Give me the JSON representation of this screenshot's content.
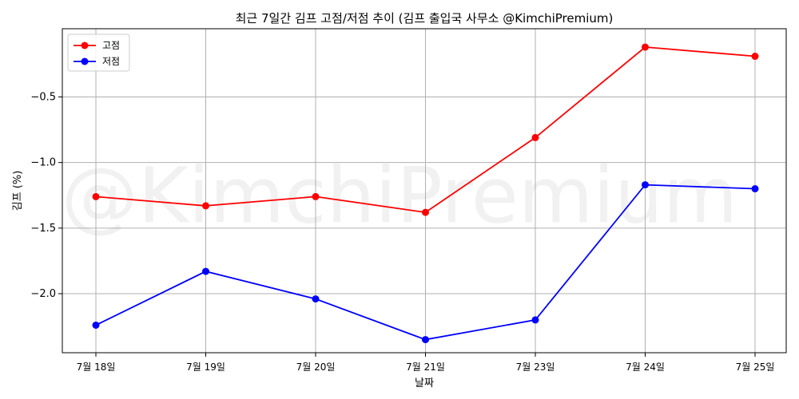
{
  "chart_data": {
    "type": "line",
    "title": "최근 7일간 김프 고점/저점 추이 (김프 출입국 사무소 @KimchiPremium)",
    "xlabel": "날짜",
    "ylabel": "김프 (%)",
    "categories": [
      "7월 18일",
      "7월 19일",
      "7월 20일",
      "7월 21일",
      "7월 23일",
      "7월 24일",
      "7월 25일"
    ],
    "series": [
      {
        "name": "고점",
        "color": "#ff0000",
        "values": [
          -1.26,
          -1.33,
          -1.26,
          -1.38,
          -0.81,
          -0.12,
          -0.19
        ]
      },
      {
        "name": "저점",
        "color": "#0000ff",
        "values": [
          -2.24,
          -1.83,
          -2.04,
          -2.35,
          -2.2,
          -1.17,
          -1.2
        ]
      }
    ],
    "yticks": [
      -0.5,
      -1.0,
      -1.5,
      -2.0
    ],
    "ytick_labels": [
      "−0.5",
      "−1.0",
      "−1.5",
      "−2.0"
    ],
    "ylim": [
      -2.45,
      0.02
    ],
    "grid": true,
    "legend_position": "top-left",
    "watermark": "@KimchiPremium"
  }
}
